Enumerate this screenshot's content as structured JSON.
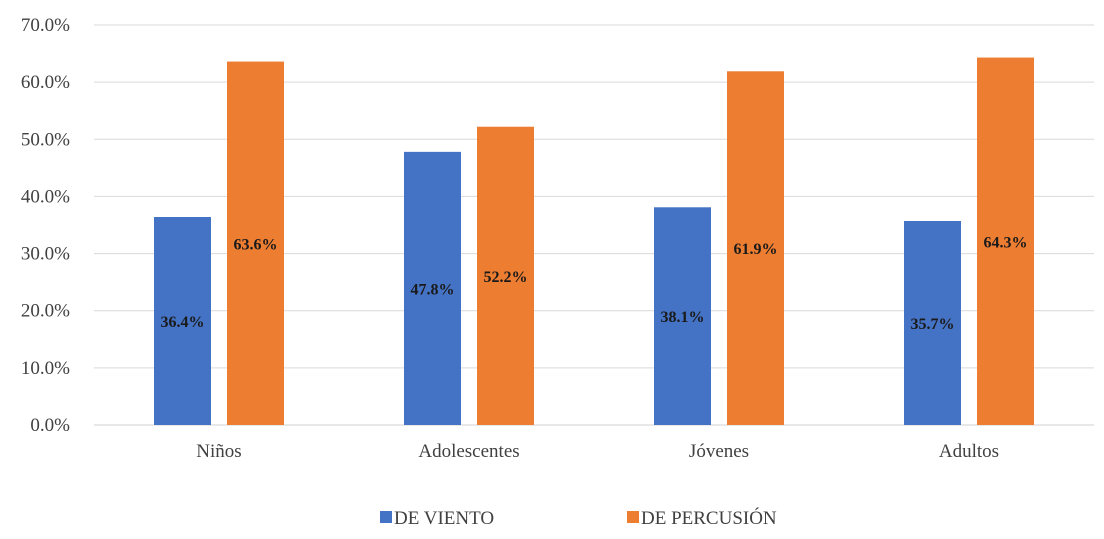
{
  "chart_data": {
    "type": "bar",
    "title": "",
    "xlabel": "",
    "ylabel": "",
    "categories": [
      "Niños",
      "Adolescentes",
      "Jóvenes",
      "Adultos"
    ],
    "series": [
      {
        "name": "DE VIENTO",
        "values": [
          36.4,
          47.8,
          38.1,
          35.7
        ],
        "labels": [
          "36.4%",
          "47.8%",
          "38.1%",
          "35.7%"
        ],
        "color": "#4472C4"
      },
      {
        "name": "DE PERCUSIÓN",
        "values": [
          63.6,
          52.2,
          61.9,
          64.3
        ],
        "labels": [
          "63.6%",
          "52.2%",
          "61.9%",
          "64.3%"
        ],
        "color": "#ED7D31"
      }
    ],
    "ylim": [
      0,
      70
    ],
    "yticks": [
      0,
      10,
      20,
      30,
      40,
      50,
      60,
      70
    ],
    "ytick_labels": [
      "0.0%",
      "10.0%",
      "20.0%",
      "30.0%",
      "40.0%",
      "50.0%",
      "60.0%",
      "70.0%"
    ],
    "grid": true,
    "legend_position": "bottom",
    "gridline_color": "#D9D9D9",
    "axis_color": "#D9D9D9"
  }
}
